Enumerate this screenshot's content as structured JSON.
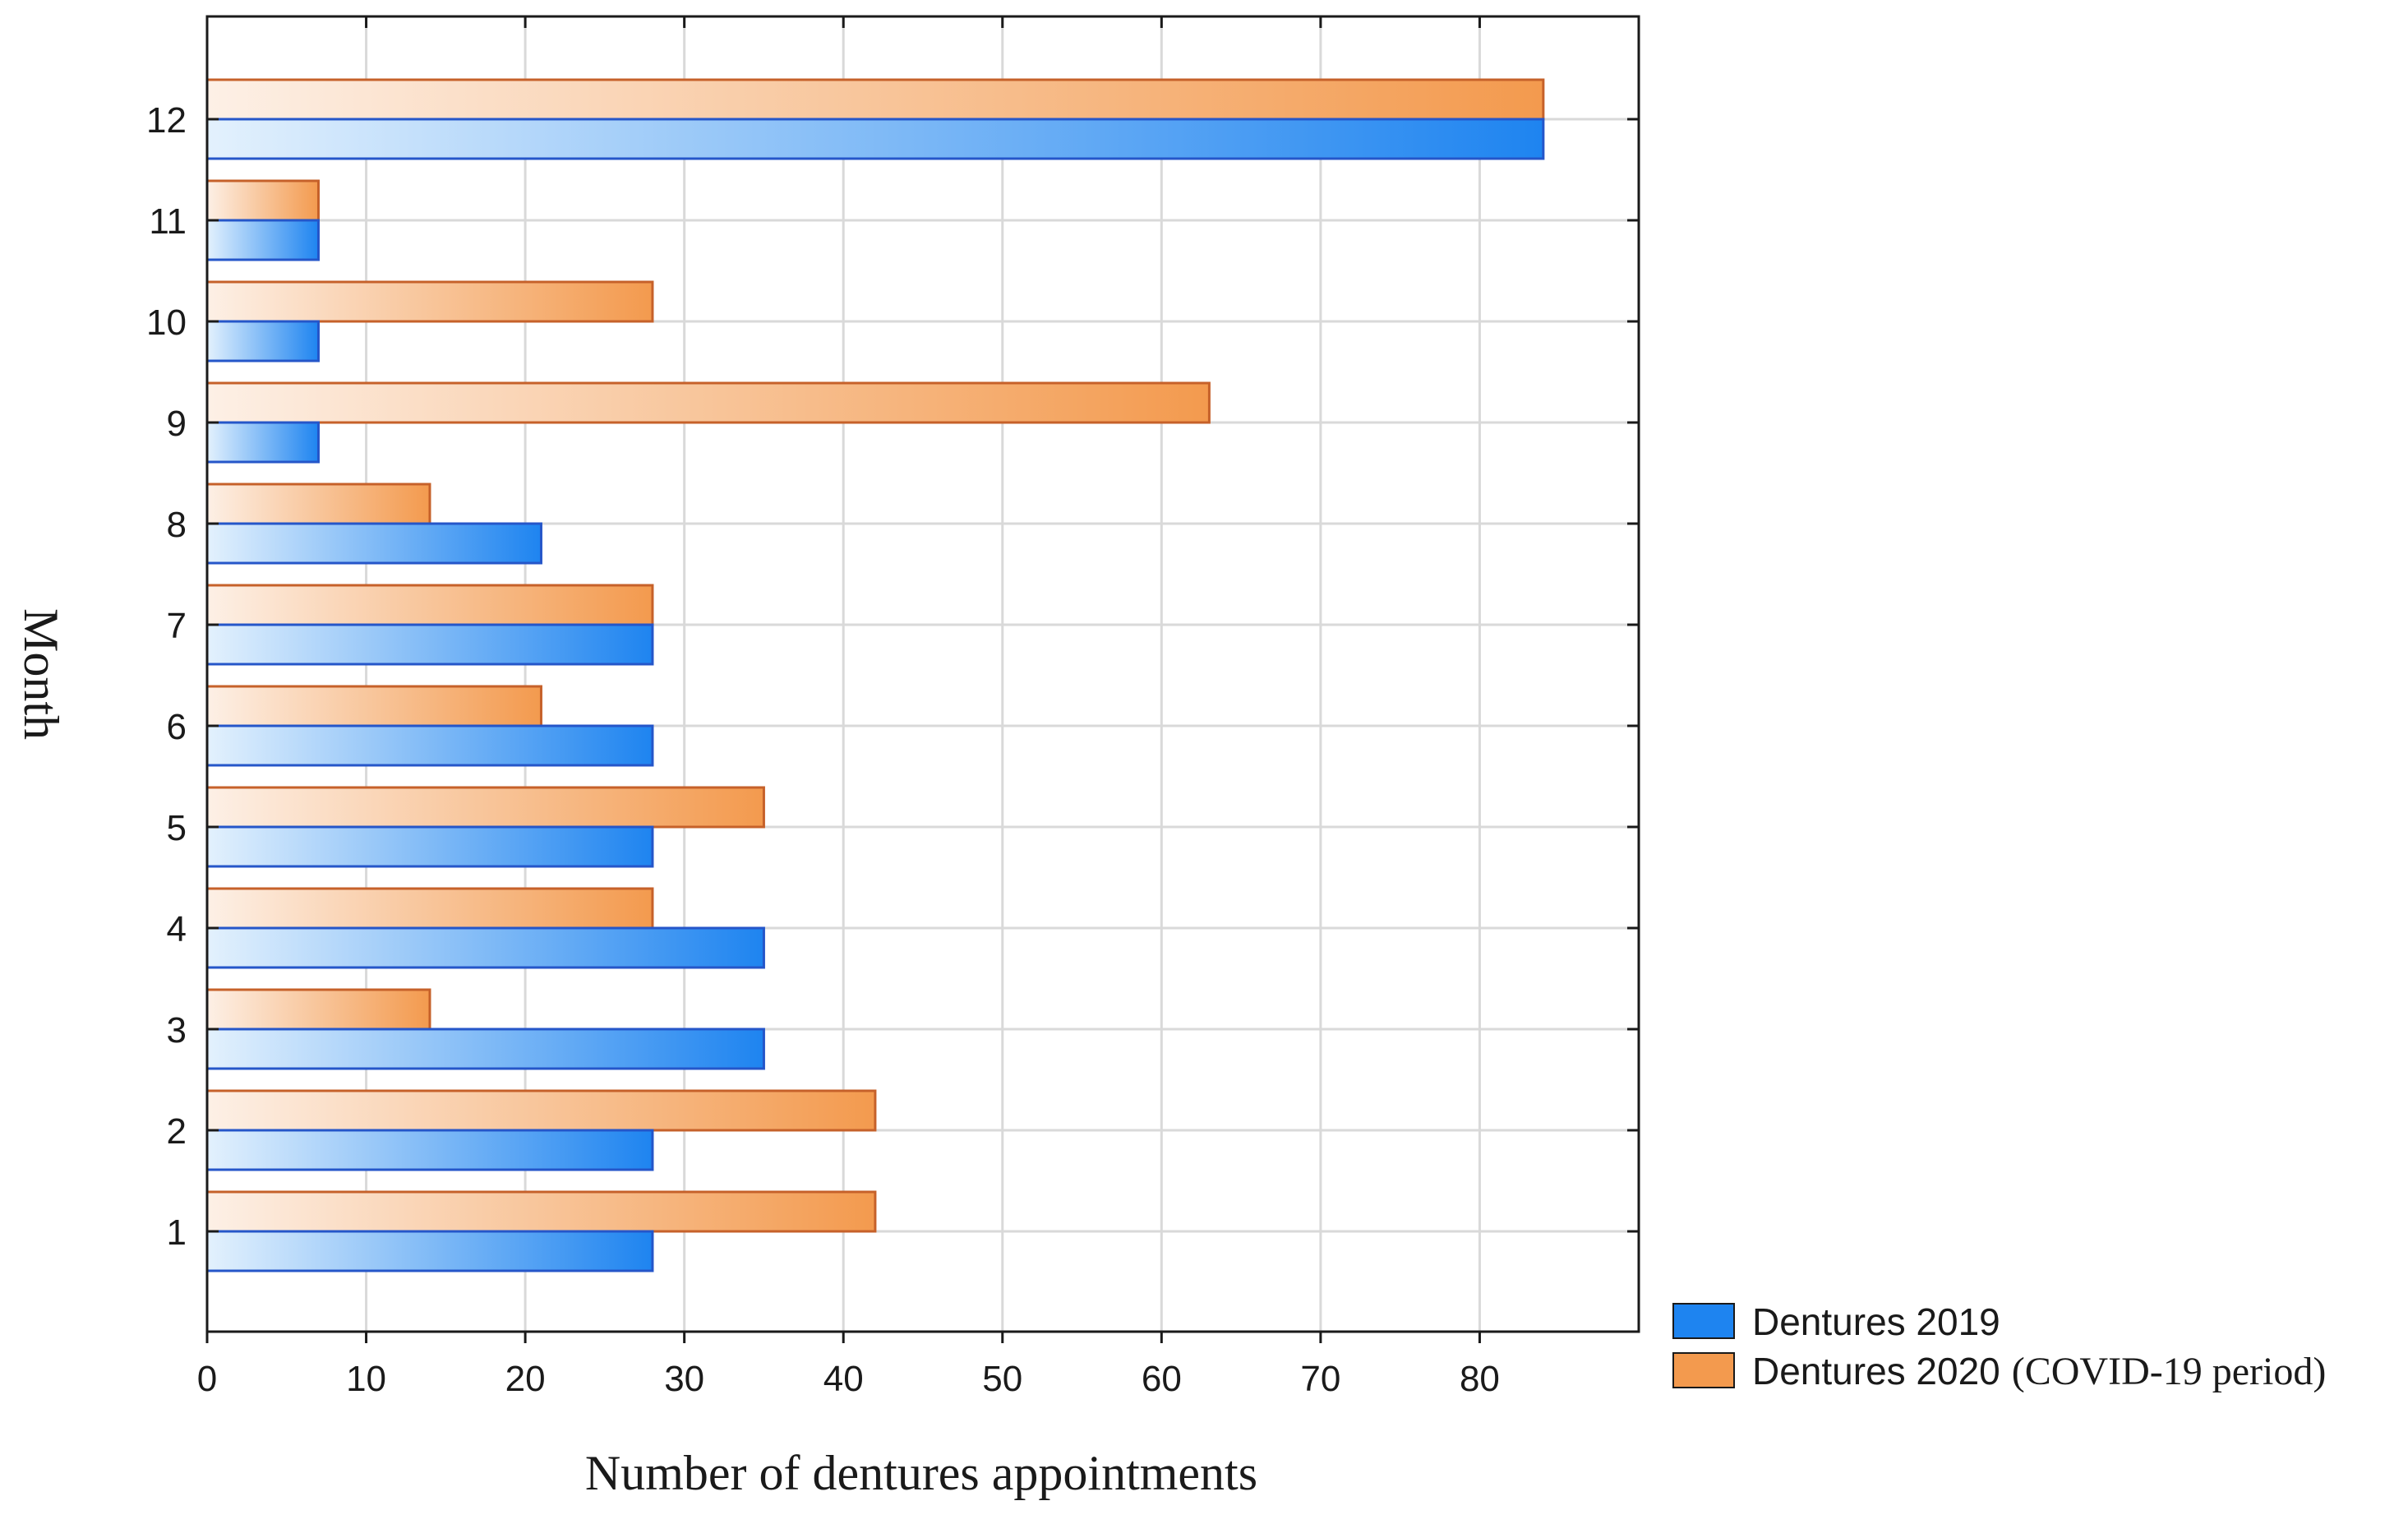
{
  "chart_data": {
    "type": "bar",
    "orientation": "horizontal",
    "categories": [
      "1",
      "2",
      "3",
      "4",
      "5",
      "6",
      "7",
      "8",
      "9",
      "10",
      "11",
      "12"
    ],
    "series": [
      {
        "name": "Dentures 2019",
        "values": [
          28,
          28,
          35,
          35,
          28,
          28,
          28,
          21,
          7,
          7,
          7,
          84
        ]
      },
      {
        "name": "Dentures 2020",
        "name_suffix": "(COVID-19 period)",
        "values": [
          42,
          42,
          14,
          28,
          35,
          21,
          28,
          14,
          63,
          28,
          7,
          84
        ]
      }
    ],
    "xlabel": "Number of dentures appointments",
    "ylabel": "Month",
    "xlim": [
      0,
      90
    ],
    "xticks": [
      0,
      10,
      20,
      30,
      40,
      50,
      60,
      70,
      80
    ],
    "grid": true,
    "legend_position": "bottom-right"
  },
  "colors": {
    "series_2019_fill": "#1e84f0",
    "series_2019_light": "#e3f1fd",
    "series_2019_border": "#2556c9",
    "series_2020_fill": "#f39a4e",
    "series_2020_light": "#fdf0e6",
    "series_2020_border": "#c6612a",
    "grid": "#d9d9d9",
    "axis": "#1a1a1a"
  }
}
